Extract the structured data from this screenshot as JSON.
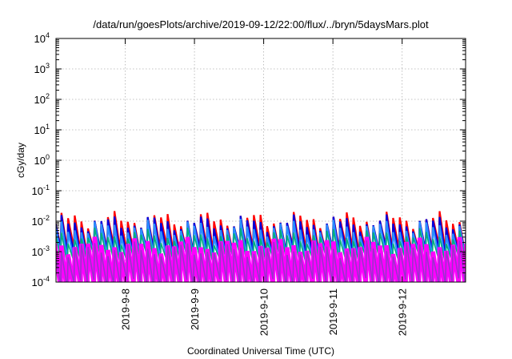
{
  "chart_data": {
    "type": "line",
    "title": "/data/run/goesPlots/archive/2019-09-12/22:00/flux/../bryn/5daysMars.plot",
    "xlabel": "Coordinated Universal Time (UTC)",
    "ylabel": "cGy/day",
    "y_scale": "log",
    "ylim": [
      0.0001,
      10000
    ],
    "y_ticks": [
      {
        "value": 0.0001,
        "base": "10",
        "exp": "-4"
      },
      {
        "value": 0.001,
        "base": "10",
        "exp": "-3"
      },
      {
        "value": 0.01,
        "base": "10",
        "exp": "-2"
      },
      {
        "value": 0.1,
        "base": "10",
        "exp": "-1"
      },
      {
        "value": 1,
        "base": "10",
        "exp": "0"
      },
      {
        "value": 10,
        "base": "10",
        "exp": "1"
      },
      {
        "value": 100,
        "base": "10",
        "exp": "2"
      },
      {
        "value": 1000,
        "base": "10",
        "exp": "3"
      },
      {
        "value": 10000,
        "base": "10",
        "exp": "4"
      }
    ],
    "xlim": [
      "2019-09-07T00:00",
      "2019-09-12T22:00"
    ],
    "x_ticks": [
      "2019-9-8",
      "2019-9-9",
      "2019-9-10",
      "2019-9-11",
      "2019-9-12"
    ],
    "x_tick_dates": [
      "2019-09-08T00:00",
      "2019-09-09T00:00",
      "2019-09-10T00:00",
      "2019-09-11T00:00",
      "2019-09-12T00:00"
    ],
    "grid": true,
    "pattern": "sawtooth",
    "period_hours": 2.3,
    "series": [
      {
        "color": "#ff0000",
        "peak": 0.011,
        "trough": 0.0011,
        "width": 2.2
      },
      {
        "color": "#0000dd",
        "peak": 0.0085,
        "trough": 0.00085,
        "width": 2.2
      },
      {
        "color": "#2a8fff",
        "peak": 0.006,
        "trough": 0.0006,
        "width": 2.2
      },
      {
        "color": "#00b07a",
        "peak": 0.0032,
        "trough": 0.00055,
        "width": 1.6
      },
      {
        "color": "#ff00ff",
        "peak": 0.0016,
        "trough": 6e-05,
        "width": 5.5
      },
      {
        "color": "#9933cc",
        "peak": 0.0012,
        "trough": 9e-05,
        "width": 1.6
      }
    ]
  }
}
